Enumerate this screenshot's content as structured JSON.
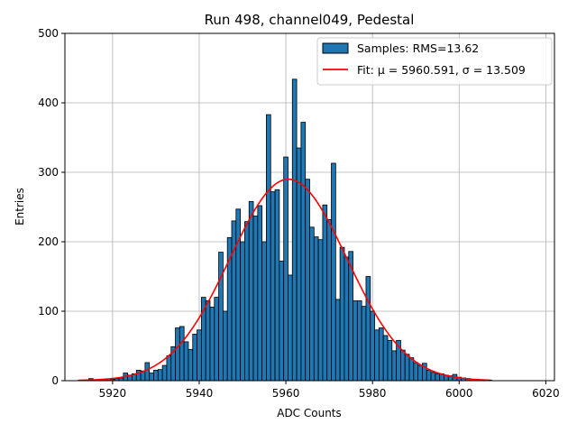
{
  "chart_data": {
    "type": "bar",
    "title": "Run 498, channel049, Pedestal",
    "xlabel": "ADC Counts",
    "ylabel": "Entries",
    "xlim": [
      5909,
      6022
    ],
    "ylim": [
      0,
      500
    ],
    "xticks": [
      5920,
      5940,
      5960,
      5980,
      6000,
      6020
    ],
    "yticks": [
      0,
      100,
      200,
      300,
      400,
      500
    ],
    "grid": true,
    "legend_position": "top-right",
    "bin_width": 1,
    "bins": [
      [
        5913,
        1
      ],
      [
        5914,
        1
      ],
      [
        5915,
        3
      ],
      [
        5916,
        1
      ],
      [
        5917,
        1
      ],
      [
        5918,
        1
      ],
      [
        5919,
        1
      ],
      [
        5920,
        2
      ],
      [
        5921,
        3
      ],
      [
        5922,
        4
      ],
      [
        5923,
        11
      ],
      [
        5924,
        8
      ],
      [
        5925,
        10
      ],
      [
        5926,
        15
      ],
      [
        5927,
        14
      ],
      [
        5928,
        26
      ],
      [
        5929,
        11
      ],
      [
        5930,
        15
      ],
      [
        5931,
        16
      ],
      [
        5932,
        22
      ],
      [
        5933,
        36
      ],
      [
        5934,
        49
      ],
      [
        5935,
        76
      ],
      [
        5936,
        78
      ],
      [
        5937,
        56
      ],
      [
        5938,
        45
      ],
      [
        5939,
        67
      ],
      [
        5940,
        73
      ],
      [
        5941,
        120
      ],
      [
        5942,
        115
      ],
      [
        5943,
        106
      ],
      [
        5944,
        120
      ],
      [
        5945,
        185
      ],
      [
        5946,
        100
      ],
      [
        5947,
        206
      ],
      [
        5948,
        230
      ],
      [
        5949,
        247
      ],
      [
        5950,
        200
      ],
      [
        5951,
        229
      ],
      [
        5952,
        258
      ],
      [
        5953,
        237
      ],
      [
        5954,
        252
      ],
      [
        5955,
        200
      ],
      [
        5956,
        383
      ],
      [
        5957,
        272
      ],
      [
        5958,
        275
      ],
      [
        5959,
        172
      ],
      [
        5960,
        322
      ],
      [
        5961,
        152
      ],
      [
        5962,
        434
      ],
      [
        5963,
        335
      ],
      [
        5964,
        372
      ],
      [
        5965,
        290
      ],
      [
        5966,
        221
      ],
      [
        5967,
        207
      ],
      [
        5968,
        203
      ],
      [
        5969,
        253
      ],
      [
        5970,
        232
      ],
      [
        5971,
        313
      ],
      [
        5972,
        117
      ],
      [
        5973,
        192
      ],
      [
        5974,
        178
      ],
      [
        5975,
        186
      ],
      [
        5976,
        115
      ],
      [
        5977,
        115
      ],
      [
        5978,
        107
      ],
      [
        5979,
        150
      ],
      [
        5980,
        100
      ],
      [
        5981,
        73
      ],
      [
        5982,
        76
      ],
      [
        5983,
        65
      ],
      [
        5984,
        58
      ],
      [
        5985,
        43
      ],
      [
        5986,
        58
      ],
      [
        5987,
        44
      ],
      [
        5988,
        38
      ],
      [
        5989,
        33
      ],
      [
        5990,
        26
      ],
      [
        5991,
        22
      ],
      [
        5992,
        25
      ],
      [
        5993,
        15
      ],
      [
        5994,
        12
      ],
      [
        5995,
        10
      ],
      [
        5996,
        10
      ],
      [
        5997,
        8
      ],
      [
        5998,
        7
      ],
      [
        5999,
        9
      ],
      [
        6000,
        5
      ],
      [
        6001,
        4
      ],
      [
        6002,
        3
      ],
      [
        6003,
        2
      ],
      [
        6004,
        2
      ],
      [
        6005,
        1
      ],
      [
        6006,
        1
      ],
      [
        6007,
        1
      ]
    ],
    "series": [
      {
        "name": "Samples: RMS=13.62",
        "type": "histogram",
        "color": "#1f77b4",
        "edge_color": "#000000"
      },
      {
        "name": "Fit: μ = 5960.591, σ = 13.509",
        "type": "line",
        "color": "#ff0000",
        "mu": 5960.591,
        "sigma": 13.509,
        "amplitude": 290,
        "x_range": [
          5912,
          6007
        ]
      }
    ]
  }
}
